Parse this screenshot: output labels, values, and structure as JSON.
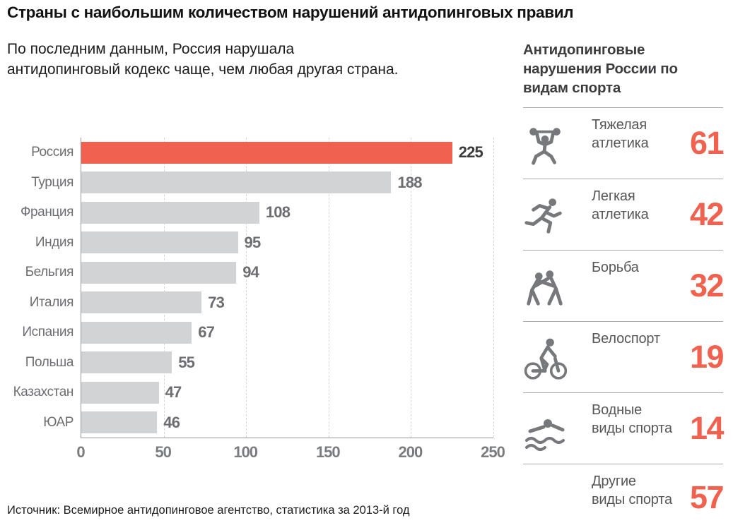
{
  "title": "Страны с наибольшим количеством нарушений антидопинговых правил",
  "subtitle": "По последним данным, Россия нарушала\nантидопинговый кодекс чаще, чем любая другая страна.",
  "source": "Источник: Всемирное антидопинговое агентство, статистика за 2013-й год",
  "colors": {
    "accent": "#f0624f",
    "bar": "#d1d3d4",
    "category_label": "#6d6e71",
    "value_label": "#6d6e71",
    "highlight_value_label": "#3b3b3d",
    "icon": "#77787b"
  },
  "chart_data": {
    "type": "bar",
    "orientation": "horizontal",
    "title": "Страны с наибольшим количеством нарушений антидопинговых правил",
    "categories": [
      "Россия",
      "Турция",
      "Франция",
      "Индия",
      "Бельгия",
      "Италия",
      "Испания",
      "Польша",
      "Казахстан",
      "ЮАР"
    ],
    "values": [
      225,
      188,
      108,
      95,
      94,
      73,
      67,
      55,
      47,
      46
    ],
    "highlight_index": 0,
    "highlight_color": "#f0624f",
    "bar_color": "#d1d3d4",
    "xlim": [
      0,
      250
    ],
    "x_ticks": [
      0,
      50,
      100,
      150,
      200,
      250
    ],
    "grid": "vertical-dashed",
    "value_labels": "end-of-bar"
  },
  "sidebar": {
    "heading": "Антидопинговые\nнарушения России по\nвидам спорта",
    "items": [
      {
        "label": "Тяжелая\nатлетика",
        "value": 61,
        "icon": "weightlifting-icon"
      },
      {
        "label": "Легкая\nатлетика",
        "value": 42,
        "icon": "running-icon"
      },
      {
        "label": "Борьба",
        "value": 32,
        "icon": "wrestling-icon"
      },
      {
        "label": "Велоспорт",
        "value": 19,
        "icon": "cycling-icon"
      },
      {
        "label": "Водные\nвиды спорта",
        "value": 14,
        "icon": "swimming-icon"
      },
      {
        "label": "Другие\nвиды спорта",
        "value": 57,
        "icon": null
      }
    ]
  }
}
